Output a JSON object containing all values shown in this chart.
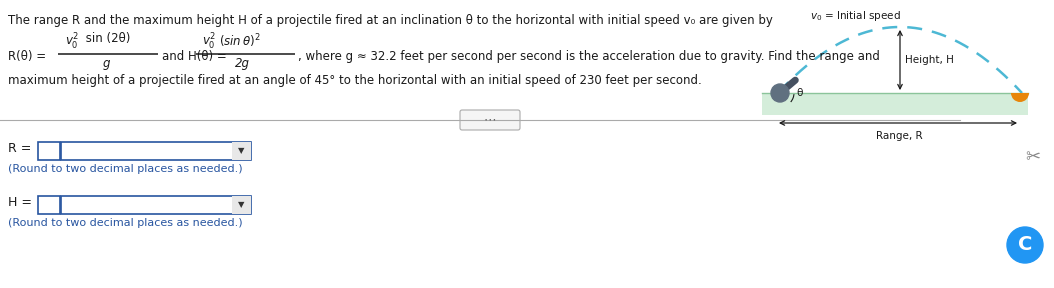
{
  "bg_color": "#ffffff",
  "text_color": "#1a1a1a",
  "blue_color": "#2855a0",
  "title_text": "The range R and the maximum height H of a projectile fired at an inclination θ to the horizontal with initial speed v₀ are given by",
  "where_text": ", where g ≈ 32.2 feet per second per second is the acceleration due to gravity. Find the range and",
  "bottom_text": "maximum height of a projectile fired at an angle of 45° to the horizontal with an initial speed of 230 feet per second.",
  "round_note": "(Round to two decimal places as needed.)",
  "diagram_label_v0": "v₀ = Initial speed",
  "diagram_label_H": "Height, H",
  "diagram_label_R": "Range, R",
  "diagram_theta": "θ",
  "grass_color": "#d4edda",
  "arc_color": "#4db8d4",
  "ground_border": "#8bc49a",
  "cannon_color": "#555555",
  "orange_color": "#e8860a",
  "divider_color": "#aaaaaa"
}
